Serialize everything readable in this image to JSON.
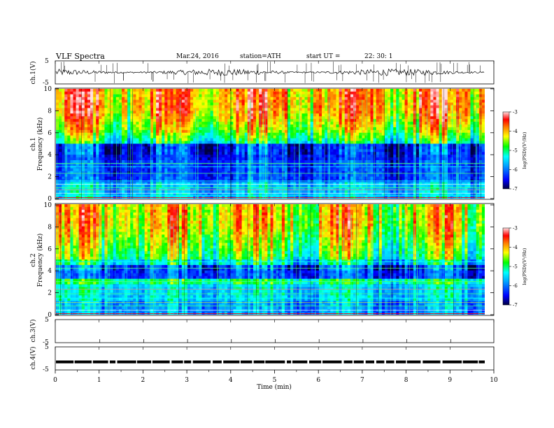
{
  "header": {
    "title": "VLF  Spectra",
    "date": "Mar.24, 2016",
    "station": "station=ATH",
    "start_label": "start  UT  =",
    "start_time": "22: 30: 1"
  },
  "chart_data": [
    {
      "type": "line",
      "panel": "ch1-waveform",
      "ylabel": "ch.1(V)",
      "ylim": [
        -5,
        5
      ],
      "y_ticks": [
        "5",
        "-5"
      ],
      "description_values": {
        "baseline": 0,
        "noise_amplitude": 1.5
      }
    },
    {
      "type": "heatmap",
      "panel": "ch1-spectrogram",
      "ylabel_channel": "ch.1",
      "ylabel": "Frequency  (kHz)",
      "ylim": [
        0,
        10
      ],
      "y_ticks": [
        "0",
        "2",
        "4",
        "6",
        "8",
        "10"
      ],
      "colorbar": {
        "title": "log(PSD)(V²/Hz)",
        "range": [
          -7,
          -3
        ],
        "ticks": [
          "-3",
          "-4",
          "-5",
          "-6",
          "-7"
        ]
      }
    },
    {
      "type": "heatmap",
      "panel": "ch2-spectrogram",
      "ylabel_channel": "ch.2",
      "ylabel": "Frequency  (kHz)",
      "ylim": [
        0,
        10
      ],
      "y_ticks": [
        "0",
        "2",
        "4",
        "6",
        "8",
        "10"
      ],
      "colorbar": {
        "title": "log(PSD)(V²/Hz)",
        "range": [
          -7,
          -3
        ],
        "ticks": [
          "-3",
          "-4",
          "-5",
          "-6",
          "-7"
        ]
      }
    },
    {
      "type": "line",
      "panel": "ch3-waveform",
      "ylabel": "ch.3(V)",
      "ylim": [
        -5,
        5
      ],
      "y_ticks": [
        "5",
        "-5"
      ]
    },
    {
      "type": "line",
      "panel": "ch4-waveform",
      "ylabel": "ch.4(V)",
      "ylim": [
        -5,
        5
      ],
      "y_ticks": [
        "5",
        "-5"
      ],
      "description_values": {
        "baseline": -1.5
      }
    }
  ],
  "x_axis": {
    "xlabel": "Time  (min)",
    "xlim": [
      0,
      10
    ],
    "ticks": [
      "0",
      "1",
      "2",
      "3",
      "4",
      "5",
      "6",
      "7",
      "8",
      "9",
      "10"
    ]
  },
  "colors": {
    "cmap_low": "#000060",
    "cmap_blue": "#0000ff",
    "cmap_cyan": "#00ffff",
    "cmap_green": "#00ff00",
    "cmap_yellow": "#ffff00",
    "cmap_red": "#ff0000",
    "cmap_top": "#ffffff"
  }
}
